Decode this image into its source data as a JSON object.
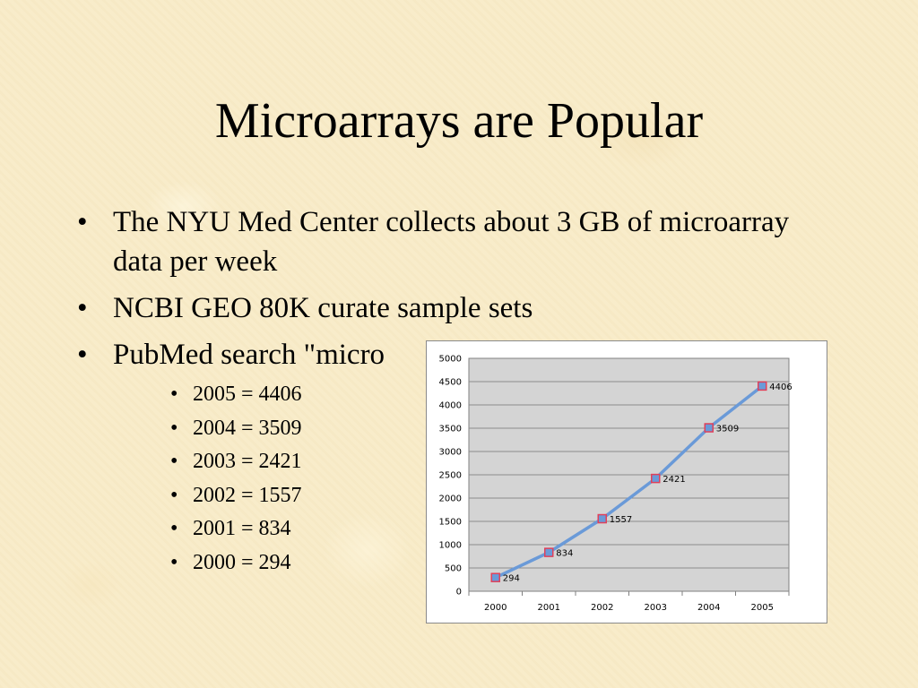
{
  "slide": {
    "title": "Microarrays are Popular",
    "bullets": [
      "The NYU Med Center collects about 3 GB of microarray data per week",
      "NCBI GEO 80K curate sample sets",
      "PubMed search \"micro"
    ],
    "bullet_glyph": "•",
    "sub_bullets": [
      "2005 = 4406",
      "2004 = 3509",
      "2003 = 2421",
      "2002 = 1557",
      "2001 = 834",
      "2000 = 294"
    ]
  },
  "chart_data": {
    "type": "line",
    "categories": [
      "2000",
      "2001",
      "2002",
      "2003",
      "2004",
      "2005"
    ],
    "series": [
      {
        "values": [
          294,
          834,
          1557,
          2421,
          3509,
          4406
        ],
        "color": "#6a9ad8",
        "marker_color": "#e0405a"
      }
    ],
    "data_labels": [
      "294",
      "834",
      "1557",
      "2421",
      "3509",
      "4406"
    ],
    "y_ticks": [
      "0",
      "500",
      "1000",
      "1500",
      "2000",
      "2500",
      "3000",
      "3500",
      "4000",
      "4500",
      "5000"
    ],
    "ylim": [
      0,
      5000
    ],
    "grid": true,
    "plot_background": "#d4d4d4",
    "legend": "none"
  }
}
